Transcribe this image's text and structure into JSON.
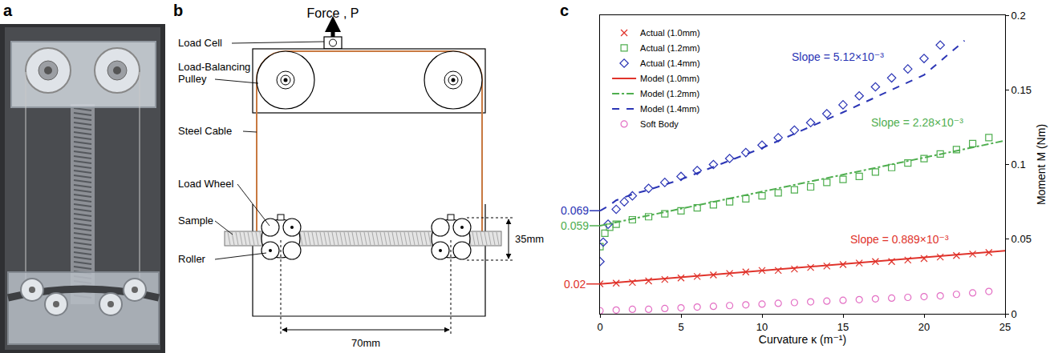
{
  "panel_a": {
    "label": "a"
  },
  "panel_b": {
    "label": "b",
    "force": "Force , P",
    "parts": [
      "Load Cell",
      "Load-Balancing Pulley",
      "Steel Cable",
      "Load Wheel",
      "Sample",
      "Roller"
    ],
    "height_dim": "35mm",
    "width_dim": "70mm"
  },
  "chart_data": {
    "type": "scatter",
    "panel_label": "c",
    "xlabel": "Curvature κ (m⁻¹)",
    "ylabel": "Moment M (Nm)",
    "xlim": [
      0,
      25
    ],
    "xticks": [
      0,
      5,
      10,
      15,
      20,
      25
    ],
    "ylim": [
      0,
      0.2
    ],
    "yticks": [
      0,
      0.05,
      0.1,
      0.15,
      0.2
    ],
    "grid": false,
    "legend": "upper left",
    "series": [
      {
        "name": "Actual (1.0mm)",
        "type": "scatter",
        "color": "#e0332b",
        "marker": "x",
        "x": [
          0,
          1,
          2,
          3,
          4,
          5,
          6,
          7,
          8,
          9,
          10,
          11,
          12,
          13,
          14,
          15,
          16,
          17,
          18,
          19,
          20,
          21,
          22,
          23,
          24
        ],
        "values": [
          0.02,
          0.0205,
          0.021,
          0.022,
          0.023,
          0.024,
          0.025,
          0.026,
          0.027,
          0.028,
          0.029,
          0.029,
          0.03,
          0.031,
          0.032,
          0.033,
          0.034,
          0.035,
          0.035,
          0.036,
          0.037,
          0.038,
          0.039,
          0.04,
          0.041
        ]
      },
      {
        "name": "Actual (1.2mm)",
        "type": "scatter",
        "color": "#4fae4f",
        "marker": "square",
        "x": [
          0,
          0.3,
          0.6,
          1,
          2,
          3,
          4,
          5,
          6,
          7,
          8,
          9,
          10,
          11,
          12,
          13,
          14,
          15,
          16,
          17,
          18,
          19,
          20,
          21,
          22,
          23,
          24
        ],
        "values": [
          0.045,
          0.054,
          0.058,
          0.06,
          0.063,
          0.065,
          0.067,
          0.069,
          0.071,
          0.073,
          0.075,
          0.077,
          0.079,
          0.081,
          0.083,
          0.085,
          0.088,
          0.09,
          0.092,
          0.095,
          0.098,
          0.101,
          0.104,
          0.107,
          0.11,
          0.114,
          0.118
        ]
      },
      {
        "name": "Actual (1.4mm)",
        "type": "scatter",
        "color": "#2b35b5",
        "marker": "diamond",
        "x": [
          0,
          0.2,
          0.5,
          1,
          1.5,
          2,
          3,
          4,
          5,
          6,
          7,
          8,
          9,
          10,
          11,
          12,
          13,
          14,
          15,
          16,
          17,
          18,
          19,
          20,
          21
        ],
        "values": [
          0.035,
          0.048,
          0.06,
          0.07,
          0.075,
          0.079,
          0.084,
          0.088,
          0.092,
          0.096,
          0.1,
          0.104,
          0.108,
          0.113,
          0.118,
          0.123,
          0.128,
          0.134,
          0.14,
          0.146,
          0.152,
          0.158,
          0.164,
          0.171,
          0.18
        ]
      },
      {
        "name": "Model (1.0mm)",
        "type": "line",
        "color": "#e0332b",
        "line_style": "solid",
        "x": [
          0,
          25
        ],
        "values": [
          0.02,
          0.0422
        ]
      },
      {
        "name": "Model (1.2mm)",
        "type": "line",
        "color": "#4fae4f",
        "line_style": "dashdot",
        "x": [
          0,
          25
        ],
        "values": [
          0.059,
          0.116
        ]
      },
      {
        "name": "Model (1.4mm)",
        "type": "line",
        "color": "#2b35b5",
        "line_style": "dash",
        "x": [
          0,
          0.5,
          1,
          2,
          3,
          5,
          10,
          15,
          20,
          22.5
        ],
        "values": [
          0.069,
          0.072,
          0.076,
          0.08,
          0.083,
          0.09,
          0.111,
          0.135,
          0.16,
          0.183
        ]
      },
      {
        "name": "Soft Body",
        "type": "scatter",
        "color": "#e36fc4",
        "marker": "circle",
        "x": [
          0,
          1,
          2,
          3,
          4,
          5,
          6,
          7,
          8,
          9,
          10,
          11,
          12,
          13,
          14,
          15,
          16,
          17,
          18,
          19,
          20,
          21,
          22,
          23,
          24
        ],
        "values": [
          0.002,
          0.0025,
          0.003,
          0.003,
          0.0035,
          0.004,
          0.0045,
          0.005,
          0.0055,
          0.006,
          0.0065,
          0.007,
          0.0075,
          0.008,
          0.0085,
          0.009,
          0.0095,
          0.01,
          0.0105,
          0.011,
          0.0115,
          0.012,
          0.013,
          0.014,
          0.015
        ]
      }
    ],
    "annotations": [
      {
        "text": "Slope = 5.12×10⁻³",
        "x": 14.7,
        "y": 0.172,
        "color": "#2b35b5"
      },
      {
        "text": "Slope = 2.28×10⁻³",
        "x": 19.6,
        "y": 0.128,
        "color": "#4fae4f"
      },
      {
        "text": "Slope = 0.889×10⁻³",
        "x": 18.5,
        "y": 0.05,
        "color": "#e0332b"
      }
    ],
    "intercepts": [
      {
        "text": "0.069",
        "y": 0.069,
        "color": "#2b35b5"
      },
      {
        "text": "0.059",
        "y": 0.059,
        "color": "#4fae4f"
      },
      {
        "text": "0.02",
        "y": 0.02,
        "color": "#e0332b"
      }
    ]
  }
}
